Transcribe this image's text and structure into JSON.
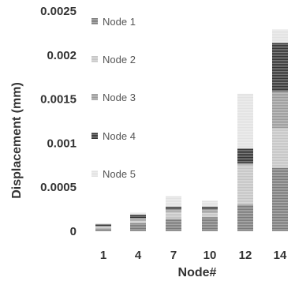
{
  "chart_data": {
    "type": "bar",
    "stacked": true,
    "categories": [
      "1",
      "4",
      "7",
      "10",
      "12",
      "14"
    ],
    "xlabel": "Node#",
    "ylabel": "Displacement (mm)",
    "ylim": [
      0,
      0.0025
    ],
    "yticks": [
      "0",
      "0.0005",
      "0.001",
      "0.0015",
      "0.002",
      "0.0025"
    ],
    "grid": false,
    "legend_position": "left",
    "series": [
      {
        "name": "Node 1",
        "color": "#7a7a7a",
        "values": [
          3e-05,
          9e-05,
          0.00014,
          0.00016,
          0.0003,
          0.00072
        ]
      },
      {
        "name": "Node 2",
        "color": "#c4c4c4",
        "values": [
          2e-05,
          3e-05,
          8e-05,
          5e-05,
          0.00045,
          0.00045
        ]
      },
      {
        "name": "Node 3",
        "color": "#9a9a9a",
        "values": [
          1e-05,
          3e-05,
          3e-05,
          4e-05,
          2e-05,
          0.00042
        ]
      },
      {
        "name": "Node 4",
        "color": "#333333",
        "values": [
          2e-05,
          4e-05,
          3e-05,
          3e-05,
          0.00017,
          0.00055
        ]
      },
      {
        "name": "Node 5",
        "color": "#e2e2e2",
        "values": [
          1e-05,
          2e-05,
          0.00012,
          7e-05,
          0.00062,
          0.00015
        ]
      }
    ]
  }
}
